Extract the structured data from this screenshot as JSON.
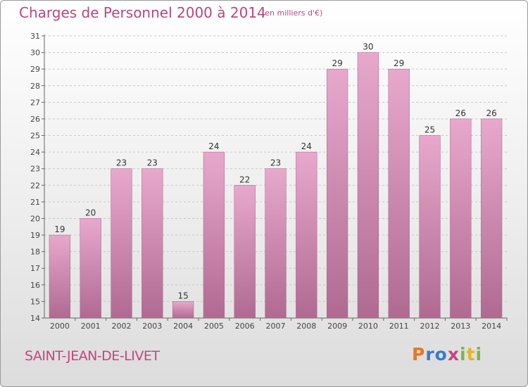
{
  "title": "Charges de Personnel 2000 à 2014",
  "subtitle": "(en milliers d'€)",
  "commune": "SAINT-JEAN-DE-LIVET",
  "logo": {
    "letters": [
      "P",
      "r",
      "o",
      "x",
      "i",
      "t",
      "i"
    ],
    "colors": [
      "#e87722",
      "#3a7bc8",
      "#3a7bc8",
      "#c8437d",
      "#7ab648",
      "#e8b422",
      "#7ab648"
    ]
  },
  "chart_data": {
    "type": "bar",
    "categories": [
      "2000",
      "2001",
      "2002",
      "2003",
      "2004",
      "2005",
      "2006",
      "2007",
      "2008",
      "2009",
      "2010",
      "2011",
      "2012",
      "2013",
      "2014"
    ],
    "values": [
      19,
      20,
      23,
      23,
      15,
      24,
      22,
      23,
      24,
      29,
      30,
      29,
      25,
      26,
      26
    ],
    "title": "Charges de Personnel 2000 à 2014",
    "subtitle": "(en milliers d'€)",
    "xlabel": "",
    "ylabel": "",
    "ylim": [
      14,
      31
    ],
    "yticks": [
      14,
      15,
      16,
      17,
      18,
      19,
      20,
      21,
      22,
      23,
      24,
      25,
      26,
      27,
      28,
      29,
      30,
      31
    ],
    "grid": true,
    "bar_color": "#d98cb6"
  }
}
